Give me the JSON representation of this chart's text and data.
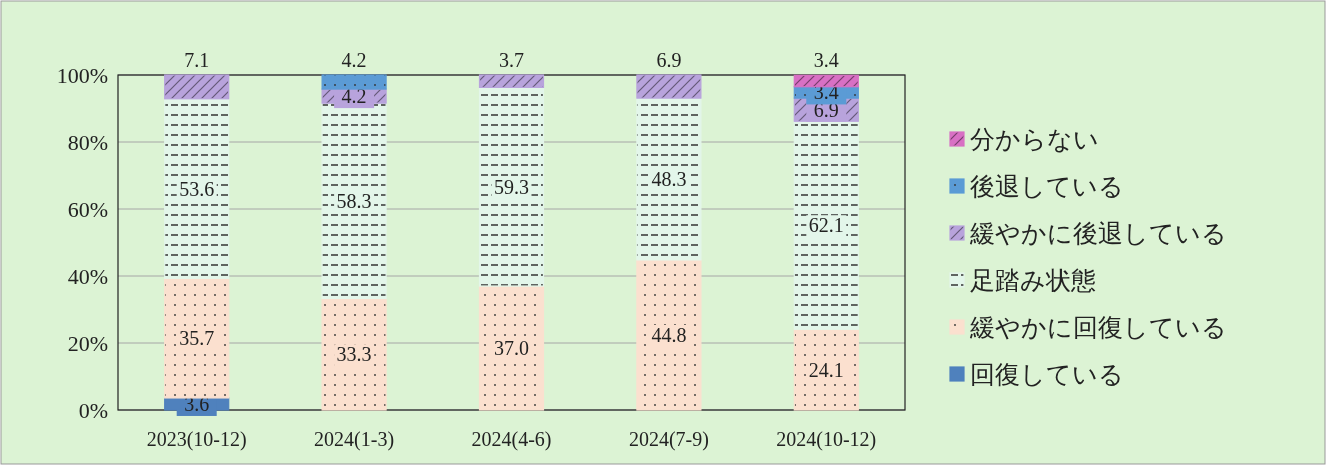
{
  "chart_data": {
    "type": "bar",
    "stacked": true,
    "categories": [
      "2023(10-12)",
      "2024(1-3)",
      "2024(4-6)",
      "2024(7-9)",
      "2024(10-12)"
    ],
    "series": [
      {
        "name": "回復している",
        "color": "#4f81bd",
        "values": [
          3.6,
          0,
          0,
          0,
          0
        ],
        "value_labels": [
          "3.6",
          null,
          null,
          null,
          null
        ]
      },
      {
        "name": "緩やかに回復している",
        "color": "#fbe0cf",
        "values": [
          35.7,
          33.3,
          37.0,
          44.8,
          24.1
        ],
        "value_labels": [
          "35.7",
          "33.3",
          "37.0",
          "44.8",
          "24.1"
        ]
      },
      {
        "name": "足踏み状態",
        "color": "#e3f6ea",
        "values": [
          53.6,
          58.3,
          59.3,
          48.3,
          62.1
        ],
        "value_labels": [
          "53.6",
          "58.3",
          "59.3",
          "48.3",
          "62.1"
        ]
      },
      {
        "name": "緩やかに後退している",
        "color": "#b8a3dc",
        "values": [
          7.1,
          4.2,
          3.7,
          6.9,
          6.9
        ],
        "value_labels": [
          "7.1",
          "4.2",
          "3.7",
          "6.9",
          "6.9"
        ]
      },
      {
        "name": "後退している",
        "color": "#5b9bd5",
        "values": [
          0,
          4.2,
          0,
          0,
          3.4
        ],
        "value_labels": [
          null,
          "4.2",
          null,
          null,
          "3.4"
        ]
      },
      {
        "name": "分からない",
        "color": "#d870c4",
        "values": [
          0,
          0,
          0,
          0,
          3.4
        ],
        "value_labels": [
          null,
          null,
          null,
          null,
          "3.4"
        ]
      }
    ],
    "ylim": [
      0,
      100
    ],
    "yticks": [
      {
        "value": 0,
        "label": "0%"
      },
      {
        "value": 20,
        "label": "20%"
      },
      {
        "value": 40,
        "label": "40%"
      },
      {
        "value": 60,
        "label": "60%"
      },
      {
        "value": 80,
        "label": "80%"
      },
      {
        "value": 100,
        "label": "100%"
      }
    ],
    "grid": "y",
    "legend": "right"
  }
}
